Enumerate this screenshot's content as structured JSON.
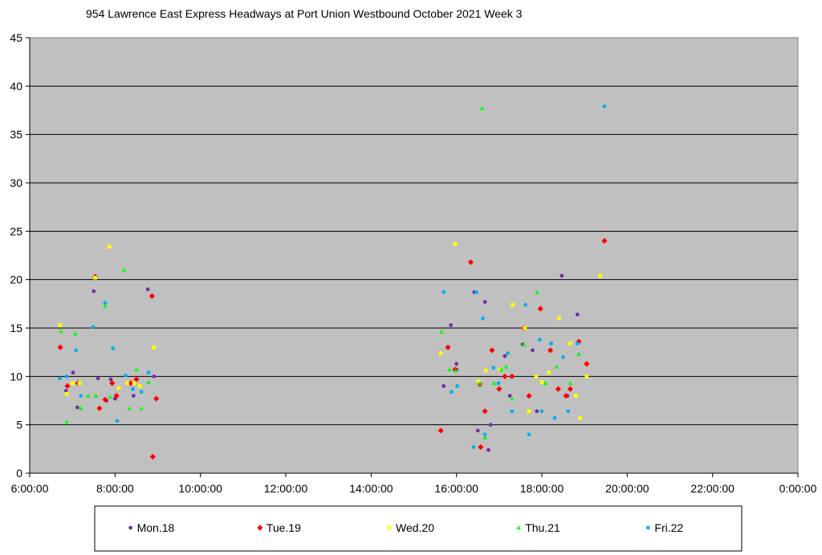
{
  "chart_data": {
    "type": "scatter",
    "title": "954 Lawrence East Express Headways at Port Union Westbound October 2021  Week 3",
    "xlabel": "",
    "ylabel": "",
    "xlim": [
      "6:00:00",
      "0:00:00"
    ],
    "ylim": [
      0,
      45
    ],
    "x_ticks": [
      "6:00:00",
      "8:00:00",
      "10:00:00",
      "12:00:00",
      "14:00:00",
      "16:00:00",
      "18:00:00",
      "20:00:00",
      "22:00:00",
      "0:00:00"
    ],
    "y_ticks": [
      0,
      5,
      10,
      15,
      20,
      25,
      30,
      35,
      40,
      45
    ],
    "grid": "horizontal",
    "legend": "bottom",
    "plot_background": "#c0c0c0",
    "series": [
      {
        "name": "Mon.18",
        "color": "#7030a0",
        "marker": "circle",
        "points": [
          [
            "6:51",
            8.5
          ],
          [
            "7:01",
            10.4
          ],
          [
            "7:07",
            6.8
          ],
          [
            "7:30",
            18.8
          ],
          [
            "7:36",
            9.8
          ],
          [
            "7:48",
            7.5
          ],
          [
            "7:54",
            9.7
          ],
          [
            "8:00",
            7.7
          ],
          [
            "8:26",
            8.0
          ],
          [
            "8:46",
            19.0
          ],
          [
            "8:55",
            10.0
          ],
          [
            "15:42",
            9.0
          ],
          [
            "15:52",
            15.3
          ],
          [
            "16:00",
            10.7
          ],
          [
            "16:00",
            11.3
          ],
          [
            "16:25",
            18.7
          ],
          [
            "16:30",
            4.4
          ],
          [
            "16:40",
            17.7
          ],
          [
            "16:45",
            2.4
          ],
          [
            "16:48",
            5.0
          ],
          [
            "17:08",
            12.1
          ],
          [
            "17:15",
            8.0
          ],
          [
            "17:33",
            13.3
          ],
          [
            "17:47",
            12.7
          ],
          [
            "17:53",
            6.4
          ],
          [
            "18:28",
            20.4
          ],
          [
            "18:36",
            8.0
          ],
          [
            "18:50",
            16.4
          ]
        ]
      },
      {
        "name": "Tue.19",
        "color": "#ff0000",
        "marker": "diamond",
        "points": [
          [
            "6:43",
            13.0
          ],
          [
            "6:53",
            9.0
          ],
          [
            "7:08",
            9.3
          ],
          [
            "7:32",
            20.3
          ],
          [
            "7:38",
            6.7
          ],
          [
            "7:46",
            7.6
          ],
          [
            "7:56",
            9.3
          ],
          [
            "8:02",
            8.0
          ],
          [
            "8:22",
            9.3
          ],
          [
            "8:30",
            9.7
          ],
          [
            "8:52",
            18.3
          ],
          [
            "8:53",
            1.7
          ],
          [
            "8:58",
            7.7
          ],
          [
            "15:38",
            4.4
          ],
          [
            "15:48",
            13.0
          ],
          [
            "15:58",
            10.7
          ],
          [
            "16:20",
            21.8
          ],
          [
            "16:33",
            9.2
          ],
          [
            "16:34",
            2.7
          ],
          [
            "16:40",
            6.4
          ],
          [
            "16:50",
            12.7
          ],
          [
            "17:00",
            8.7
          ],
          [
            "17:08",
            10.0
          ],
          [
            "17:18",
            10.0
          ],
          [
            "17:35",
            15.0
          ],
          [
            "17:42",
            8.0
          ],
          [
            "17:58",
            17.0
          ],
          [
            "18:12",
            12.7
          ],
          [
            "18:23",
            8.7
          ],
          [
            "18:34",
            8.0
          ],
          [
            "18:40",
            8.7
          ],
          [
            "18:52",
            13.6
          ],
          [
            "19:03",
            11.3
          ],
          [
            "19:28",
            24.0
          ]
        ]
      },
      {
        "name": "Wed.20",
        "color": "#ffff00",
        "marker": "square",
        "points": [
          [
            "6:43",
            15.3
          ],
          [
            "6:52",
            8.2
          ],
          [
            "7:00",
            9.3
          ],
          [
            "7:10",
            9.3
          ],
          [
            "7:32",
            20.2
          ],
          [
            "7:52",
            23.4
          ],
          [
            "8:05",
            8.8
          ],
          [
            "8:17",
            9.3
          ],
          [
            "8:27",
            9.3
          ],
          [
            "8:35",
            9.0
          ],
          [
            "8:55",
            13.0
          ],
          [
            "15:38",
            12.4
          ],
          [
            "15:58",
            23.7
          ],
          [
            "16:31",
            9.5
          ],
          [
            "16:41",
            10.6
          ],
          [
            "17:01",
            10.7
          ],
          [
            "17:19",
            17.4
          ],
          [
            "17:36",
            15.0
          ],
          [
            "17:42",
            6.4
          ],
          [
            "17:52",
            10.0
          ],
          [
            "18:00",
            9.4
          ],
          [
            "18:10",
            10.4
          ],
          [
            "18:24",
            16.0
          ],
          [
            "18:40",
            13.4
          ],
          [
            "18:48",
            8.0
          ],
          [
            "18:54",
            5.7
          ],
          [
            "19:03",
            10.0
          ],
          [
            "19:22",
            20.4
          ]
        ]
      },
      {
        "name": "Thu.21",
        "color": "#00ff00",
        "marker": "triangle",
        "points": [
          [
            "6:44",
            14.7
          ],
          [
            "6:52",
            5.3
          ],
          [
            "7:04",
            14.4
          ],
          [
            "7:12",
            6.7
          ],
          [
            "7:22",
            8.0
          ],
          [
            "7:33",
            8.0
          ],
          [
            "7:46",
            17.3
          ],
          [
            "7:53",
            7.9
          ],
          [
            "8:13",
            21.0
          ],
          [
            "8:20",
            6.7
          ],
          [
            "8:30",
            10.7
          ],
          [
            "8:37",
            6.7
          ],
          [
            "8:47",
            9.4
          ],
          [
            "15:39",
            14.6
          ],
          [
            "15:50",
            10.7
          ],
          [
            "15:59",
            10.6
          ],
          [
            "16:33",
            9.3
          ],
          [
            "16:36",
            37.7
          ],
          [
            "16:40",
            3.7
          ],
          [
            "16:53",
            9.3
          ],
          [
            "17:03",
            10.7
          ],
          [
            "17:10",
            11.0
          ],
          [
            "17:18",
            7.7
          ],
          [
            "17:35",
            13.3
          ],
          [
            "17:53",
            18.7
          ],
          [
            "18:05",
            9.3
          ],
          [
            "18:21",
            11.0
          ],
          [
            "18:40",
            9.3
          ],
          [
            "18:52",
            12.3
          ]
        ]
      },
      {
        "name": "Fri.22",
        "color": "#00b0f0",
        "marker": "circle",
        "points": [
          [
            "6:42",
            9.8
          ],
          [
            "6:52",
            10.0
          ],
          [
            "7:05",
            12.7
          ],
          [
            "7:12",
            8.0
          ],
          [
            "7:29",
            15.1
          ],
          [
            "7:46",
            17.6
          ],
          [
            "7:57",
            12.9
          ],
          [
            "8:03",
            5.4
          ],
          [
            "8:15",
            10.1
          ],
          [
            "8:25",
            8.7
          ],
          [
            "8:37",
            8.4
          ],
          [
            "8:47",
            10.4
          ],
          [
            "15:42",
            18.7
          ],
          [
            "15:53",
            8.4
          ],
          [
            "16:01",
            9.0
          ],
          [
            "16:24",
            2.7
          ],
          [
            "16:28",
            18.7
          ],
          [
            "16:37",
            16.0
          ],
          [
            "16:40",
            4.0
          ],
          [
            "16:52",
            10.9
          ],
          [
            "16:59",
            9.3
          ],
          [
            "17:12",
            12.4
          ],
          [
            "17:18",
            6.4
          ],
          [
            "17:37",
            17.4
          ],
          [
            "17:42",
            4.0
          ],
          [
            "17:57",
            13.8
          ],
          [
            "18:00",
            6.4
          ],
          [
            "18:13",
            13.4
          ],
          [
            "18:18",
            5.7
          ],
          [
            "18:30",
            12.0
          ],
          [
            "18:37",
            6.4
          ],
          [
            "18:50",
            13.4
          ],
          [
            "19:28",
            37.9
          ]
        ]
      }
    ]
  }
}
